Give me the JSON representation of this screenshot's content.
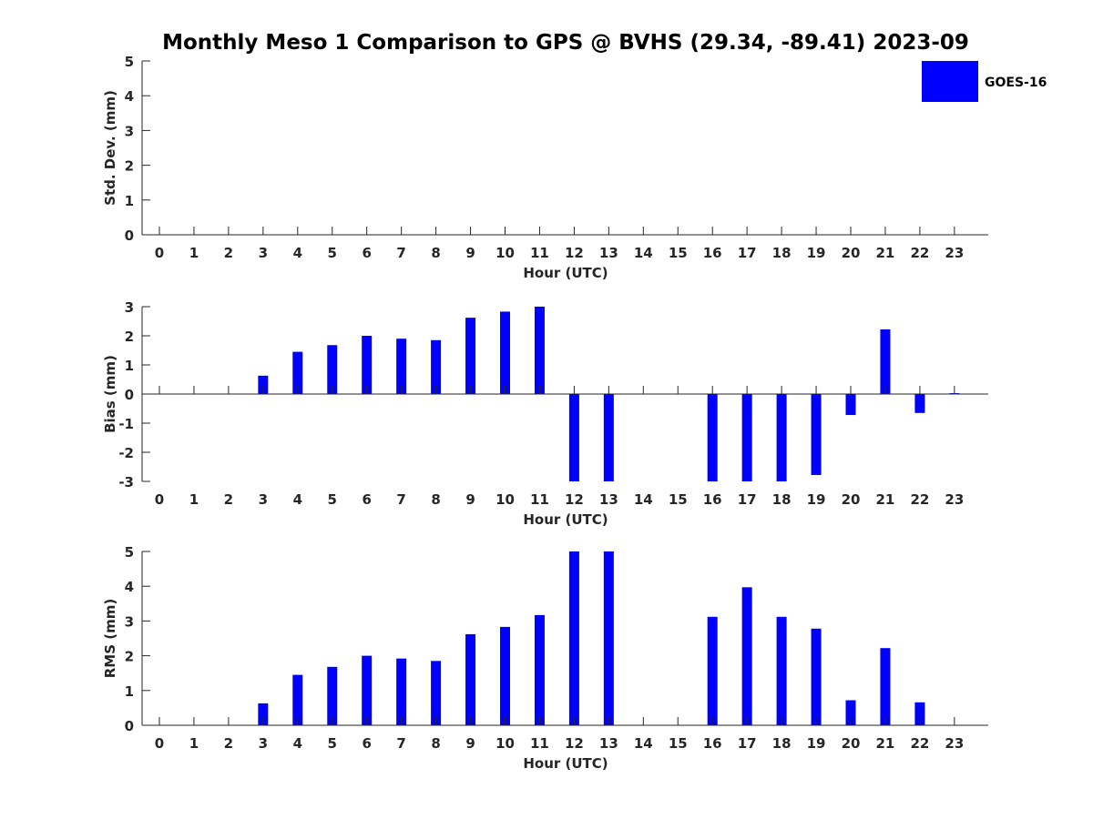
{
  "chart_data": {
    "title": "Monthly Meso 1 Comparison to GPS @ BVHS (29.34, -89.41) 2023-09",
    "legend": {
      "label": "GOES-16",
      "color": "#0000ff",
      "placement": "top-right"
    },
    "bar_color": "#0000ff",
    "panels": [
      {
        "type": "bar",
        "xlabel": "Hour (UTC)",
        "ylabel": "Std. Dev. (mm)",
        "ylim": [
          0,
          5
        ],
        "yticks": [
          0,
          1,
          2,
          3,
          4,
          5
        ],
        "categories": [
          0,
          1,
          2,
          3,
          4,
          5,
          6,
          7,
          8,
          9,
          10,
          11,
          12,
          13,
          14,
          15,
          16,
          17,
          18,
          19,
          20,
          21,
          22,
          23
        ],
        "values": [
          null,
          null,
          null,
          null,
          null,
          null,
          null,
          null,
          null,
          null,
          null,
          null,
          null,
          null,
          null,
          null,
          null,
          null,
          null,
          null,
          null,
          null,
          null,
          null
        ]
      },
      {
        "type": "bar",
        "xlabel": "Hour (UTC)",
        "ylabel": "Bias (mm)",
        "ylim": [
          -3,
          3
        ],
        "yticks": [
          -3,
          -2,
          -1,
          0,
          1,
          2,
          3
        ],
        "categories": [
          0,
          1,
          2,
          3,
          4,
          5,
          6,
          7,
          8,
          9,
          10,
          11,
          12,
          13,
          14,
          15,
          16,
          17,
          18,
          19,
          20,
          21,
          22,
          23
        ],
        "values": [
          null,
          null,
          null,
          0.63,
          1.45,
          1.68,
          2.0,
          1.9,
          1.85,
          2.62,
          2.83,
          3.0,
          -3.0,
          -3.0,
          null,
          null,
          -3.0,
          -3.0,
          -3.0,
          -2.78,
          -0.72,
          2.22,
          -0.65,
          0.03
        ]
      },
      {
        "type": "bar",
        "xlabel": "Hour (UTC)",
        "ylabel": "RMS (mm)",
        "ylim": [
          0,
          5
        ],
        "yticks": [
          0,
          1,
          2,
          3,
          4,
          5
        ],
        "categories": [
          0,
          1,
          2,
          3,
          4,
          5,
          6,
          7,
          8,
          9,
          10,
          11,
          12,
          13,
          14,
          15,
          16,
          17,
          18,
          19,
          20,
          21,
          22,
          23
        ],
        "values": [
          null,
          null,
          null,
          0.63,
          1.45,
          1.68,
          2.0,
          1.92,
          1.85,
          2.62,
          2.83,
          3.17,
          5.0,
          5.0,
          null,
          null,
          3.12,
          3.97,
          3.12,
          2.78,
          0.72,
          2.22,
          0.66,
          null
        ]
      }
    ]
  }
}
